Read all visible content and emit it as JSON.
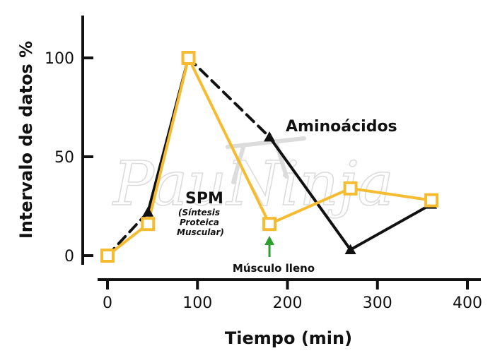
{
  "chart_data": {
    "type": "line",
    "xlabel": "Tiempo (min)",
    "ylabel": "Intervalo de datos %",
    "xlim": [
      0,
      400
    ],
    "ylim": [
      0,
      120
    ],
    "xticks": [
      0,
      100,
      200,
      300,
      400
    ],
    "yticks": [
      0,
      50,
      100
    ],
    "xtick_labels": [
      "0",
      "100",
      "200",
      "300",
      "400"
    ],
    "ytick_labels": [
      "0",
      "50",
      "100"
    ],
    "grid": false,
    "series": [
      {
        "name": "Aminoácidos",
        "color": "#111111",
        "marker": "triangle",
        "x": [
          0,
          45,
          90,
          180,
          270,
          360
        ],
        "y": [
          0,
          22,
          100,
          60,
          3,
          26
        ]
      },
      {
        "name": "SPM",
        "color": "#F5BC32",
        "marker": "square",
        "x": [
          0,
          45,
          90,
          180,
          270,
          360
        ],
        "y": [
          0,
          16,
          100,
          16,
          34,
          28
        ]
      }
    ],
    "annotations": {
      "aminoacidos": "Aminoácidos",
      "spm": "SPM",
      "spm_sub1": "(Síntesis",
      "spm_sub2": "Proteica",
      "spm_sub3": "Muscular)",
      "musculo": "Músculo lleno",
      "arrow_color": "#2E9E2E"
    },
    "watermark": "PauNinja"
  }
}
